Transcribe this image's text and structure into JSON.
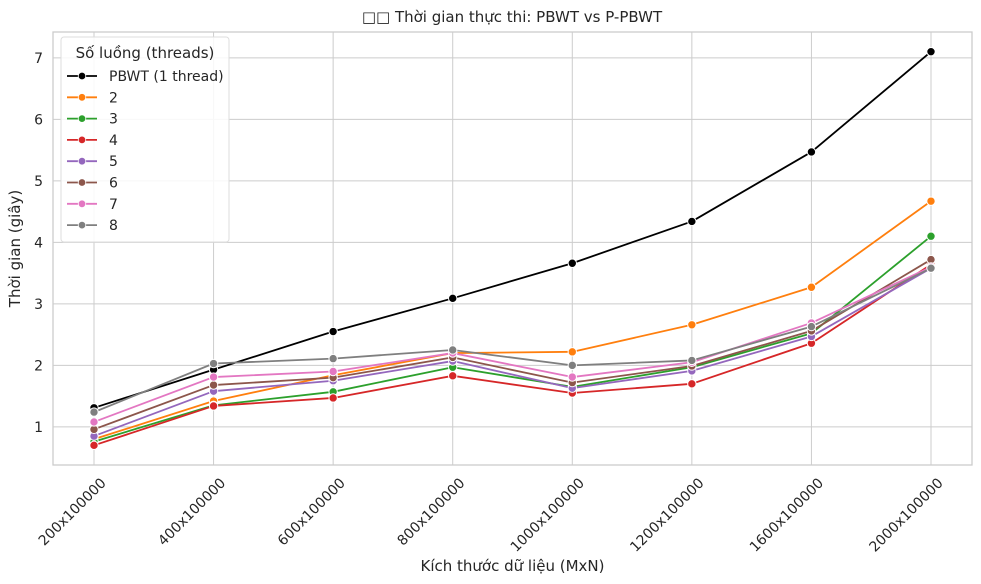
{
  "chart_data": {
    "type": "line",
    "title": "□□ Thời gian thực thi: PBWT vs P-PBWT",
    "xlabel": "Kích thước dữ liệu (MxN)",
    "ylabel": "Thời gian (giây)",
    "categories": [
      "200x100000",
      "400x100000",
      "600x100000",
      "800x100000",
      "1000x100000",
      "1200x100000",
      "1600x100000",
      "2000x100000"
    ],
    "ylim": [
      0.38,
      7.42
    ],
    "yticks": [
      1,
      2,
      3,
      4,
      5,
      6,
      7
    ],
    "grid": true,
    "legend": {
      "title": "Số luồng (threads)",
      "placement": "top-left"
    },
    "series": [
      {
        "name": "PBWT (1 thread)",
        "color": "#000000",
        "values": [
          1.31,
          1.93,
          2.55,
          3.09,
          3.66,
          4.34,
          5.47,
          7.1
        ]
      },
      {
        "name": "2",
        "color": "#ff7f0e",
        "values": [
          0.8,
          1.42,
          1.84,
          2.2,
          2.22,
          2.66,
          3.27,
          4.67
        ]
      },
      {
        "name": "3",
        "color": "#2ca02c",
        "values": [
          0.76,
          1.35,
          1.57,
          1.97,
          1.65,
          1.97,
          2.52,
          4.1
        ]
      },
      {
        "name": "4",
        "color": "#d62728",
        "values": [
          0.7,
          1.34,
          1.47,
          1.83,
          1.55,
          1.7,
          2.36,
          3.64
        ]
      },
      {
        "name": "5",
        "color": "#9467bd",
        "values": [
          0.85,
          1.58,
          1.75,
          2.07,
          1.63,
          1.91,
          2.47,
          3.58
        ]
      },
      {
        "name": "6",
        "color": "#8c564b",
        "values": [
          0.96,
          1.68,
          1.8,
          2.13,
          1.72,
          1.99,
          2.56,
          3.72
        ]
      },
      {
        "name": "7",
        "color": "#e377c2",
        "values": [
          1.08,
          1.81,
          1.9,
          2.2,
          1.81,
          2.05,
          2.69,
          3.6
        ]
      },
      {
        "name": "8",
        "color": "#7f7f7f",
        "values": [
          1.24,
          2.03,
          2.11,
          2.25,
          2.0,
          2.08,
          2.63,
          3.58
        ]
      }
    ]
  }
}
